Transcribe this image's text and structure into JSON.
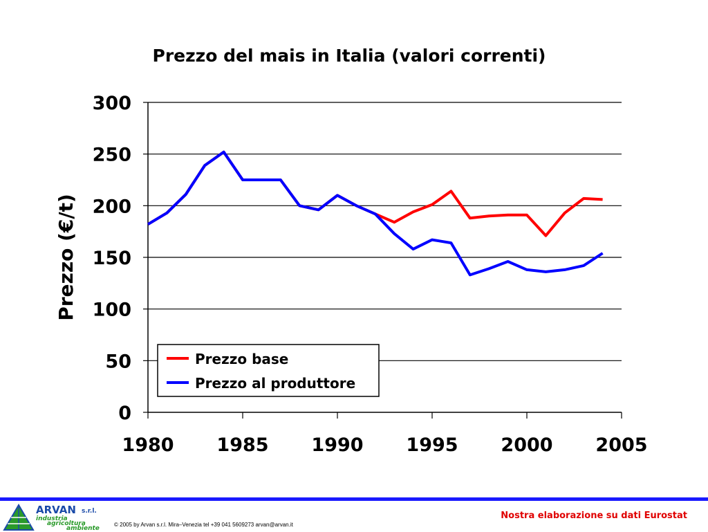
{
  "chart_data": {
    "type": "line",
    "title": "Prezzo del mais in Italia (valori correnti)",
    "xlabel": "",
    "ylabel": "Prezzo (€/t)",
    "xlim": [
      1980,
      2005
    ],
    "ylim": [
      0,
      300
    ],
    "x_ticks": [
      1980,
      1985,
      1990,
      1995,
      2000,
      2005
    ],
    "y_ticks": [
      0,
      50,
      100,
      150,
      200,
      250,
      300
    ],
    "grid": "horizontal",
    "legend_position": "bottom-left",
    "series": [
      {
        "name": "Prezzo base",
        "color": "#ff0000",
        "points": [
          [
            1980,
            182
          ],
          [
            1981,
            193
          ],
          [
            1982,
            211
          ],
          [
            1983,
            239
          ],
          [
            1984,
            252
          ],
          [
            1985,
            225
          ],
          [
            1986,
            225
          ],
          [
            1987,
            225
          ],
          [
            1988,
            200
          ],
          [
            1989,
            196
          ],
          [
            1990,
            210
          ],
          [
            1991,
            200
          ],
          [
            1992,
            192
          ],
          [
            1993,
            184
          ],
          [
            1994,
            194
          ],
          [
            1995,
            201
          ],
          [
            1996,
            214
          ],
          [
            1997,
            188
          ],
          [
            1998,
            190
          ],
          [
            1999,
            191
          ],
          [
            2000,
            191
          ],
          [
            2001,
            171
          ],
          [
            2002,
            193
          ],
          [
            2003,
            207
          ],
          [
            2004,
            206
          ]
        ]
      },
      {
        "name": "Prezzo al produttore",
        "color": "#0000ff",
        "points": [
          [
            1980,
            182
          ],
          [
            1981,
            193
          ],
          [
            1982,
            211
          ],
          [
            1983,
            239
          ],
          [
            1984,
            252
          ],
          [
            1985,
            225
          ],
          [
            1986,
            225
          ],
          [
            1987,
            225
          ],
          [
            1988,
            200
          ],
          [
            1989,
            196
          ],
          [
            1990,
            210
          ],
          [
            1991,
            200
          ],
          [
            1992,
            192
          ],
          [
            1993,
            173
          ],
          [
            1994,
            158
          ],
          [
            1995,
            167
          ],
          [
            1996,
            164
          ],
          [
            1997,
            133
          ],
          [
            1998,
            139
          ],
          [
            1999,
            146
          ],
          [
            2000,
            138
          ],
          [
            2001,
            136
          ],
          [
            2002,
            138
          ],
          [
            2003,
            142
          ],
          [
            2004,
            154
          ]
        ]
      }
    ]
  },
  "footer": {
    "copyright": "© 2005 by Arvan s.r.l. Mira–Venezia tel +39 041 5609273 arvan@arvan.it",
    "source": "Nostra elaborazione su dati Eurostat",
    "accent_color": "#1a1aff"
  },
  "logo": {
    "name": "ARVAN",
    "suffix": "s.r.l.",
    "lines": [
      "industria",
      "agricoltura",
      "ambiente"
    ]
  }
}
